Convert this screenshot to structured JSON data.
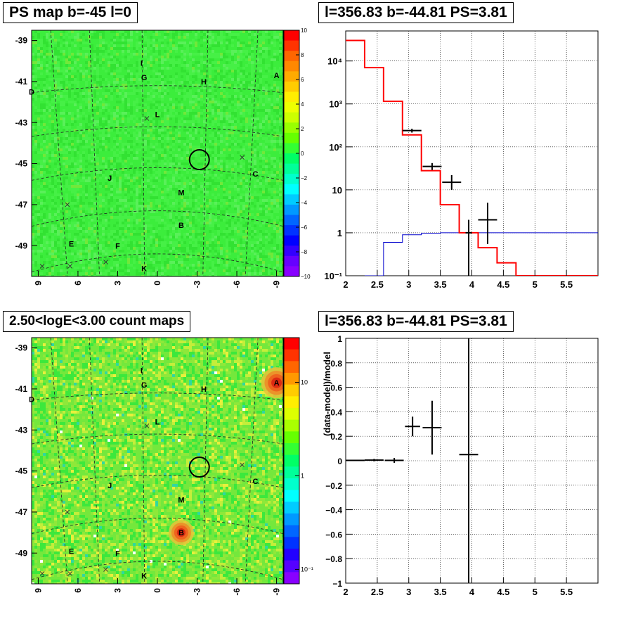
{
  "panels": {
    "ps_map": {
      "title": "PS map b=-45 l=0",
      "y_ticks": [
        "-39",
        "-41",
        "-43",
        "-45",
        "-47",
        "-49"
      ],
      "x_ticks": [
        "9",
        "6",
        "3",
        "0",
        "-3",
        "-6",
        "-9"
      ],
      "colorbar_ticks": [
        "10",
        "8",
        "6",
        "4",
        "2",
        "0",
        "−2",
        "−4",
        "−6",
        "−8",
        "−10"
      ],
      "labels": [
        "I",
        "G",
        "H",
        "A",
        "D",
        "L",
        "C",
        "J",
        "M",
        "B",
        "E",
        "F",
        "K"
      ]
    },
    "count_map": {
      "title": "2.50<logE<3.00 count maps",
      "y_ticks": [
        "-39",
        "-41",
        "-43",
        "-45",
        "-47",
        "-49"
      ],
      "x_ticks": [
        "9",
        "6",
        "3",
        "0",
        "-3",
        "-6",
        "-9"
      ],
      "colorbar_ticks": [
        "10",
        "1",
        "10⁻¹"
      ],
      "labels": [
        "I",
        "G",
        "H",
        "A",
        "D",
        "L",
        "C",
        "J",
        "M",
        "B",
        "E",
        "F",
        "K"
      ]
    },
    "spectrum": {
      "title": "l=356.83 b=-44.81 PS=3.81",
      "x_ticks": [
        "2",
        "2.5",
        "3",
        "3.5",
        "4",
        "4.5",
        "5",
        "5.5"
      ],
      "y_ticks": [
        "10⁴",
        "10³",
        "10²",
        "10",
        "1",
        "10⁻¹"
      ]
    },
    "residual": {
      "title": "l=356.83 b=-44.81 PS=3.81",
      "ylabel": "(data-model)/model",
      "x_ticks": [
        "2",
        "2.5",
        "3",
        "3.5",
        "4",
        "4.5",
        "5",
        "5.5"
      ],
      "y_ticks": [
        "1",
        "0.8",
        "0.6",
        "0.4",
        "0.2",
        "0",
        "−0.2",
        "−0.4",
        "−0.6",
        "−0.8",
        "−1"
      ]
    }
  },
  "colors": {
    "map_green": "#3cf03c",
    "model_red": "#ff0000",
    "background_blue": "#0000cc",
    "data_black": "#000000"
  },
  "chart_data": [
    {
      "type": "heatmap",
      "title": "PS map b=-45 l=0",
      "x_range": [
        9.5,
        -9.5
      ],
      "y_range": [
        -50.5,
        -38.5
      ],
      "z_range": [
        -10,
        10
      ],
      "sources": [
        {
          "name": "I",
          "l": 1.2,
          "b": -40.1
        },
        {
          "name": "G",
          "l": 1.0,
          "b": -40.8
        },
        {
          "name": "H",
          "l": -3.5,
          "b": -41.0
        },
        {
          "name": "A",
          "l": -9.0,
          "b": -40.7
        },
        {
          "name": "D",
          "l": 9.5,
          "b": -41.5
        },
        {
          "name": "L",
          "l": 0.0,
          "b": -42.6
        },
        {
          "name": "C",
          "l": -7.4,
          "b": -45.5
        },
        {
          "name": "J",
          "l": 3.6,
          "b": -45.7
        },
        {
          "name": "M",
          "l": -1.8,
          "b": -46.4
        },
        {
          "name": "B",
          "l": -1.8,
          "b": -48.0
        },
        {
          "name": "E",
          "l": 6.5,
          "b": -48.9
        },
        {
          "name": "F",
          "l": 3.0,
          "b": -49.0
        },
        {
          "name": "K",
          "l": 1.0,
          "b": -50.1
        }
      ],
      "highlight": {
        "l": -3.17,
        "b": -44.81
      }
    },
    {
      "type": "heatmap",
      "title": "2.50<logE<3.00 count maps",
      "x_range": [
        9.5,
        -9.5
      ],
      "y_range": [
        -50.5,
        -38.5
      ],
      "z_scale": "log",
      "z_range": [
        0.07,
        30
      ]
    },
    {
      "type": "line",
      "title": "l=356.83 b=-44.81 PS=3.81",
      "x_range": [
        2,
        6
      ],
      "y_scale": "log",
      "y_range": [
        0.1,
        50000
      ],
      "series": [
        {
          "style": "step",
          "color": "#ff0000",
          "edges": [
            2,
            2.3,
            2.6,
            2.9,
            3.2,
            3.5,
            3.8,
            4.1,
            4.4,
            4.7,
            6
          ],
          "values": [
            30000,
            7000,
            1150,
            190,
            28,
            4.5,
            1.0,
            0.45,
            0.2,
            0.1
          ]
        },
        {
          "style": "step",
          "color": "#0000cc",
          "edges": [
            2.3,
            2.6,
            2.9,
            3.2,
            3.5,
            3.8,
            4.1,
            6
          ],
          "values": [
            0.1,
            0.6,
            0.9,
            0.98,
            1.0,
            1.0,
            1.0
          ]
        },
        {
          "style": "errorbars",
          "color": "#000000",
          "points": [
            {
              "x": 3.05,
              "xerr": 0.15,
              "y": 240,
              "ylo": 215,
              "yhi": 265
            },
            {
              "x": 3.37,
              "xerr": 0.15,
              "y": 35,
              "ylo": 29,
              "yhi": 42
            },
            {
              "x": 3.68,
              "xerr": 0.15,
              "y": 15,
              "ylo": 10,
              "yhi": 22
            },
            {
              "x": 3.95,
              "xerr": 0.05,
              "y": 1.0,
              "ylo": 0.1,
              "yhi": 2
            },
            {
              "x": 4.25,
              "xerr": 0.15,
              "y": 2,
              "ylo": 0.55,
              "yhi": 5
            }
          ]
        }
      ]
    },
    {
      "type": "scatter",
      "title": "l=356.83 b=-44.81 PS=3.81",
      "ylabel": "(data-model)/model",
      "x_range": [
        2,
        6
      ],
      "y_range": [
        -1,
        1
      ],
      "points": [
        {
          "x": 2.15,
          "xerr": 0.15,
          "y": 0.003,
          "yerr": 0.005
        },
        {
          "x": 2.45,
          "xerr": 0.15,
          "y": 0.005,
          "yerr": 0.01
        },
        {
          "x": 2.77,
          "xerr": 0.15,
          "y": 0.003,
          "yerr": 0.02
        },
        {
          "x": 3.06,
          "xerr": 0.12,
          "y": 0.28,
          "yerr": 0.08
        },
        {
          "x": 3.37,
          "xerr": 0.15,
          "y": 0.27,
          "yerr": 0.22
        },
        {
          "x": 3.95,
          "xerr": 0.15,
          "y": 0.05,
          "yerr": 1.5
        }
      ]
    }
  ]
}
